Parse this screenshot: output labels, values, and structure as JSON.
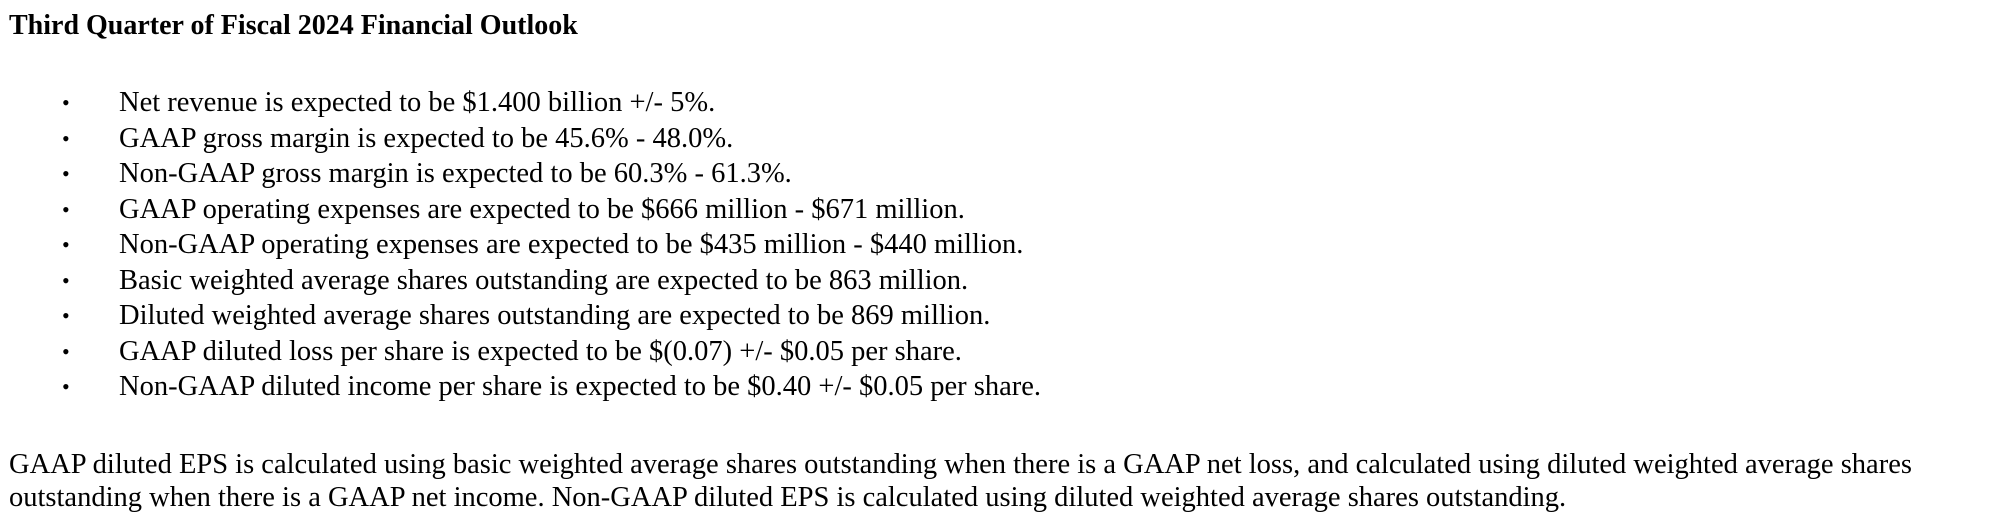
{
  "document": {
    "heading": "Third Quarter of Fiscal 2024 Financial Outlook",
    "bullet_symbol": "•",
    "outlook_items": [
      "Net revenue is expected to be $1.400 billion +/- 5%.",
      "GAAP gross margin is expected to be 45.6% - 48.0%.",
      "Non-GAAP gross margin is expected to be 60.3% - 61.3%.",
      "GAAP operating expenses are expected to be $666 million - $671 million.",
      "Non-GAAP operating expenses are expected to be $435 million - $440 million.",
      "Basic weighted average shares outstanding are expected to be 863 million.",
      "Diluted weighted average shares outstanding are expected to be 869 million.",
      "GAAP diluted loss per share is expected to be $(0.07) +/- $0.05 per share.",
      "Non-GAAP diluted income per share is expected to be $0.40 +/- $0.05 per share."
    ],
    "note": "GAAP diluted EPS is calculated using basic weighted average shares outstanding when there is a GAAP net loss, and calculated using diluted weighted average shares outstanding when there is a GAAP net income. Non-GAAP diluted EPS is calculated using diluted weighted average shares outstanding."
  }
}
